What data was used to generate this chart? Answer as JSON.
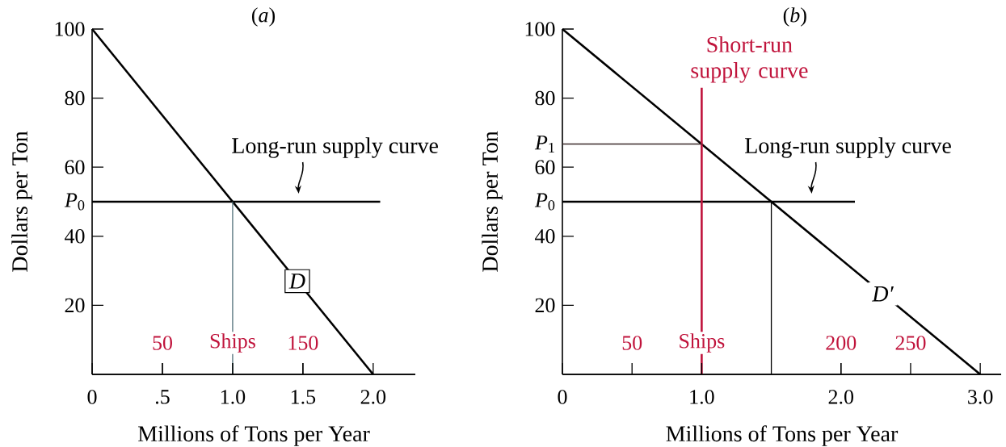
{
  "chart_data": [
    {
      "type": "line",
      "title": "(*a*)",
      "xlabel": "Millions of Tons per Year",
      "ylabel": "Dollars per Ton",
      "xlim": [
        0,
        2.3
      ],
      "ylim": [
        0,
        100
      ],
      "xticks": [
        0,
        {
          "value": 0.5,
          "label": ".5"
        },
        {
          "value": 1,
          "label": "1.0"
        },
        1.5,
        {
          "value": 2,
          "label": "2.0"
        }
      ],
      "yticks": [
        20,
        40,
        60,
        80,
        100
      ],
      "x2lim": [
        0,
        230
      ],
      "x2ticks": [
        50,
        {
          "value": 100,
          "label": "Ships"
        },
        150
      ],
      "series": [
        {
          "color": "#000000",
          "x": [
            0,
            2
          ],
          "values": [
            100,
            0
          ]
        },
        {
          "color": "#000000",
          "x": [
            0,
            2.05
          ],
          "values": [
            50,
            50
          ]
        },
        {
          "color": "#4f6f78",
          "x": [
            1,
            1
          ],
          "values": [
            0,
            50
          ]
        }
      ],
      "annotations": [
        {
          "text": "*P*$_{0}$",
          "x": 0,
          "y": 50
        },
        {
          "text": "Long-run supply curve",
          "x": 1.47,
          "y": 50
        },
        {
          "text": "D",
          "x": 1.46,
          "y": 27
        }
      ]
    },
    {
      "type": "line",
      "title": "(*b*)",
      "xlabel": "Millions of Tons per Year",
      "ylabel": "Dollars per Ton",
      "xlim": [
        0,
        3.15
      ],
      "ylim": [
        0,
        100
      ],
      "xticks": [
        0,
        {
          "value": 1,
          "label": "1.0"
        },
        {
          "value": 2,
          "label": "2.0"
        },
        {
          "value": 3,
          "label": "3.0"
        }
      ],
      "yticks": [
        20,
        40,
        60,
        80,
        100
      ],
      "x2lim": [
        0,
        315
      ],
      "x2ticks": [
        50,
        {
          "value": 100,
          "label": "Ships"
        },
        200,
        250
      ],
      "series": [
        {
          "color": "#000000",
          "x": [
            0,
            3
          ],
          "values": [
            100,
            0
          ]
        },
        {
          "color": "#000000",
          "x": [
            0,
            2.1
          ],
          "values": [
            50,
            50
          ]
        },
        {
          "color": "#c0143c",
          "x": [
            1,
            1
          ],
          "values": [
            0,
            83
          ]
        },
        {
          "color": "#3a2a2a",
          "x": [
            0,
            1
          ],
          "values": [
            66.7,
            66.7
          ]
        },
        {
          "color": "#000000",
          "x": [
            1.5,
            1.5
          ],
          "values": [
            0,
            50
          ]
        }
      ],
      "annotations": [
        {
          "text": "*P*$_{1}$",
          "x": 0,
          "y": 66.7
        },
        {
          "text": "*P*$_{0}$",
          "x": 0,
          "y": 50
        },
        {
          "text": "Short-run supply curve",
          "x": 1,
          "y": 83
        },
        {
          "text": "Long-run supply curve",
          "x": 1.79,
          "y": 50
        },
        {
          "text": "D′",
          "x": 2.3,
          "y": 23.3
        }
      ]
    }
  ]
}
